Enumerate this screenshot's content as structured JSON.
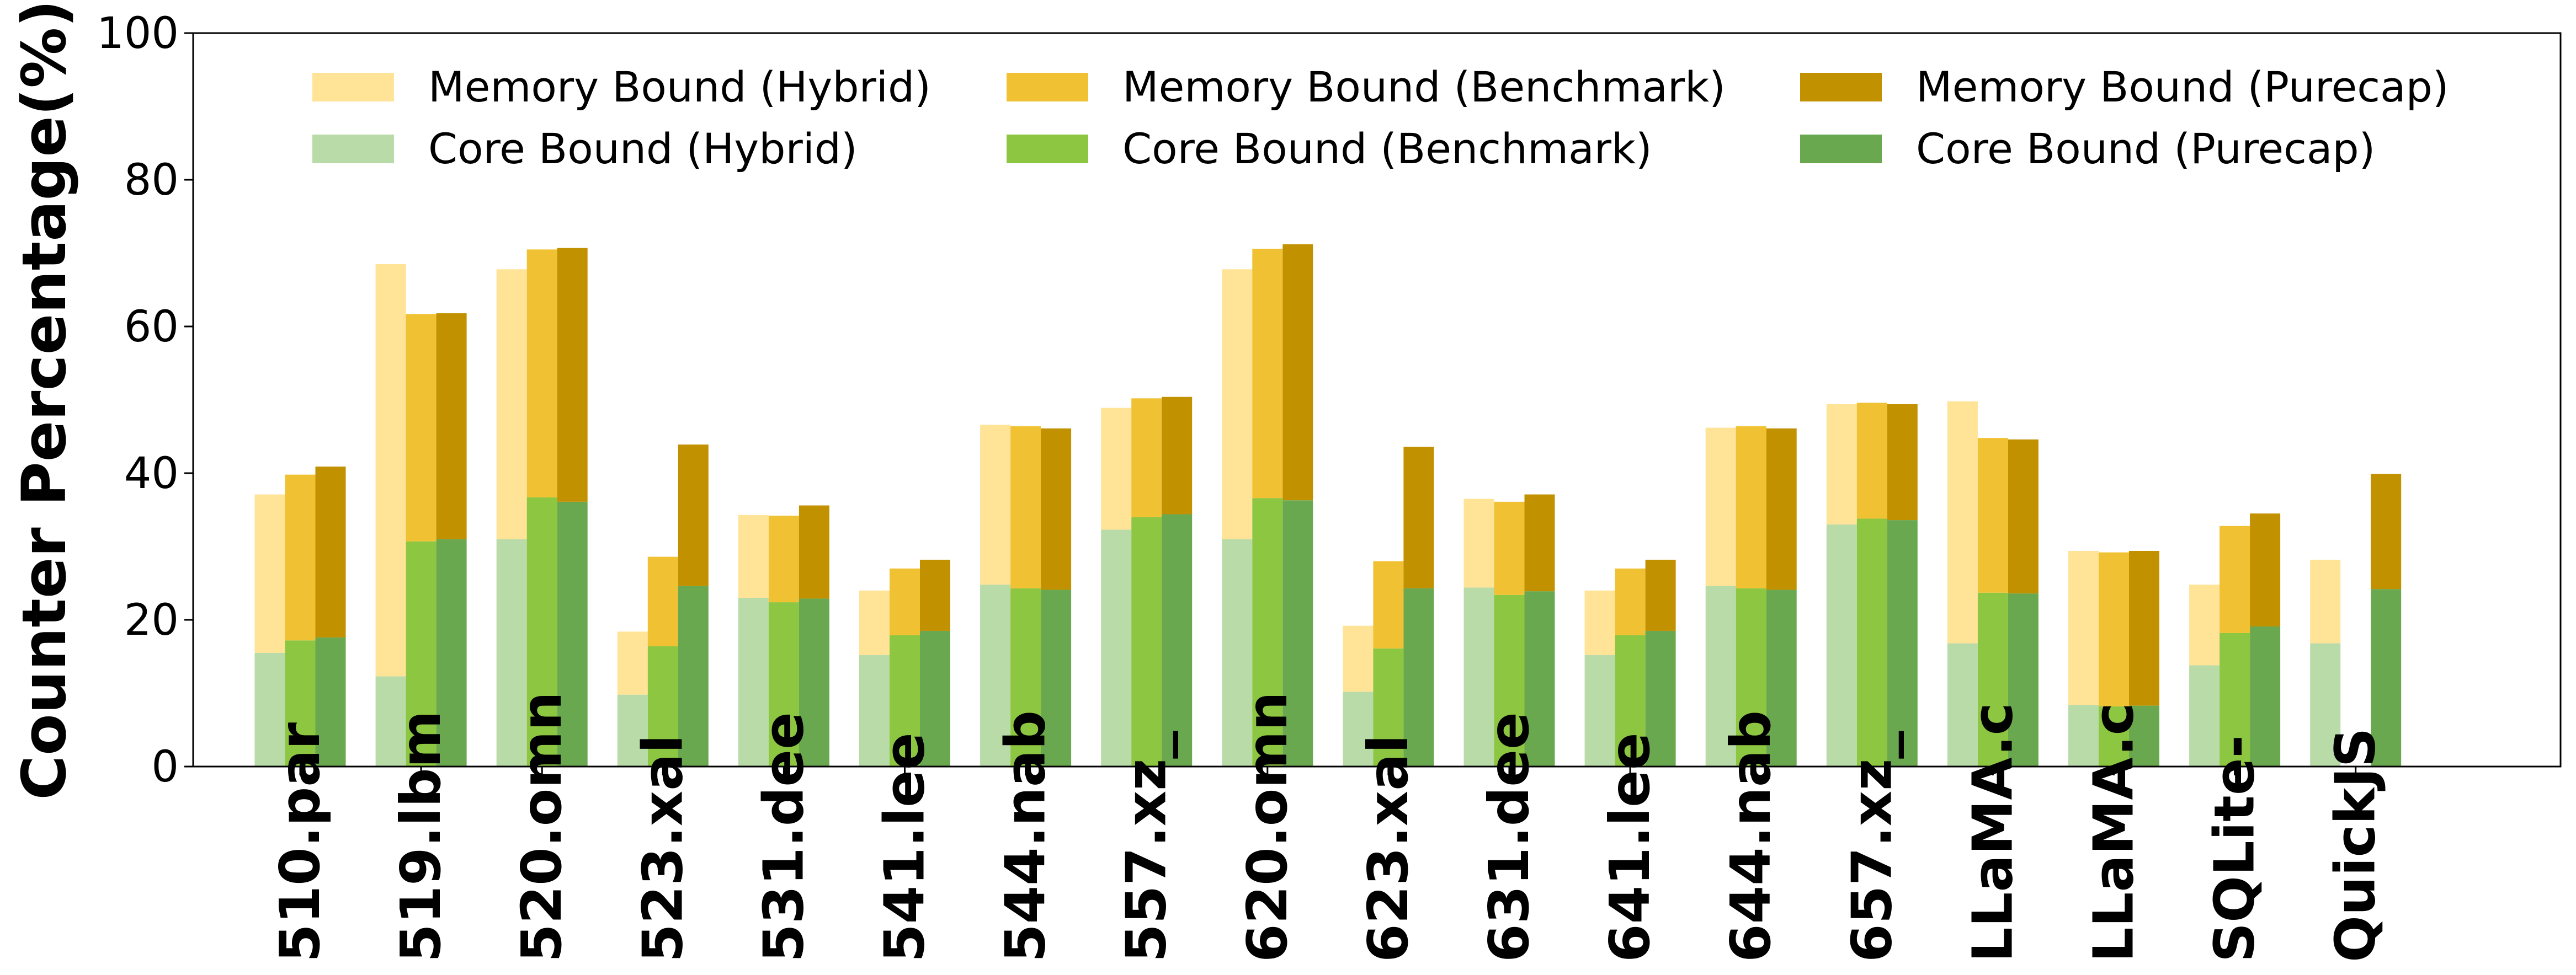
{
  "chart_data": {
    "type": "bar",
    "stacked": true,
    "grouped": true,
    "title": "",
    "xlabel": "",
    "ylabel": "Counter Percentage(%)",
    "ylim": [
      0,
      100
    ],
    "yticks": [
      0,
      20,
      40,
      60,
      80,
      100
    ],
    "grid": false,
    "legend_position": "top",
    "categories": [
      "510.par",
      "519.lbm",
      "520.omn",
      "523.xal",
      "531.dee",
      "541.lee",
      "544.nab",
      "557.xz_",
      "620.omn",
      "623.xal",
      "631.dee",
      "641.lee",
      "644.nab",
      "657.xz_",
      "LLaMA.c",
      "LLaMA.c",
      "SQLite-",
      "QuickJS"
    ],
    "series": [
      {
        "name": "Core Bound (Hybrid)",
        "group": "Hybrid",
        "component": "core",
        "color": "#b8dba8",
        "values": [
          15.5,
          12.3,
          31.0,
          9.8,
          23.0,
          15.2,
          24.8,
          32.3,
          31.0,
          10.2,
          24.4,
          15.2,
          24.6,
          33.0,
          16.8,
          8.4,
          13.8,
          16.8
        ]
      },
      {
        "name": "Memory Bound (Hybrid)",
        "group": "Hybrid",
        "component": "memory",
        "color": "#ffe396",
        "values": [
          21.6,
          56.2,
          36.8,
          8.6,
          11.3,
          8.8,
          21.8,
          16.6,
          36.8,
          9.0,
          12.1,
          8.8,
          21.6,
          16.4,
          33.0,
          21.0,
          11.0,
          11.4
        ]
      },
      {
        "name": "Core Bound (Benchmark)",
        "group": "Benchmark",
        "component": "core",
        "color": "#8dc641",
        "values": [
          17.2,
          30.7,
          36.7,
          16.4,
          22.4,
          17.9,
          24.3,
          34.0,
          36.6,
          16.1,
          23.4,
          17.9,
          24.3,
          33.8,
          23.7,
          8.2,
          18.2,
          null
        ]
      },
      {
        "name": "Memory Bound (Benchmark)",
        "group": "Benchmark",
        "component": "memory",
        "color": "#f0c233",
        "values": [
          22.6,
          31.0,
          33.8,
          12.2,
          11.8,
          9.1,
          22.1,
          16.2,
          34.0,
          11.9,
          12.7,
          9.1,
          22.1,
          15.8,
          21.1,
          21.0,
          14.6,
          null
        ]
      },
      {
        "name": "Core Bound (Purecap)",
        "group": "Purecap",
        "component": "core",
        "color": "#6aa84f",
        "values": [
          17.6,
          31.0,
          36.1,
          24.6,
          22.9,
          18.5,
          24.1,
          34.4,
          36.3,
          24.3,
          23.9,
          18.5,
          24.1,
          33.6,
          23.6,
          8.3,
          19.1,
          24.2
        ]
      },
      {
        "name": "Memory Bound (Purecap)",
        "group": "Purecap",
        "component": "memory",
        "color": "#c29100",
        "values": [
          23.3,
          30.8,
          34.6,
          19.3,
          12.7,
          9.7,
          22.0,
          16.0,
          34.9,
          19.3,
          13.2,
          9.7,
          22.0,
          15.8,
          21.0,
          21.1,
          15.4,
          15.7
        ]
      }
    ],
    "legend": [
      {
        "label": "Memory Bound (Hybrid)",
        "color": "#ffe396"
      },
      {
        "label": "Memory Bound (Benchmark)",
        "color": "#f0c233"
      },
      {
        "label": "Memory Bound (Purecap)",
        "color": "#c29100"
      },
      {
        "label": "Core Bound (Hybrid)",
        "color": "#b8dba8"
      },
      {
        "label": "Core Bound (Benchmark)",
        "color": "#8dc641"
      },
      {
        "label": "Core Bound (Purecap)",
        "color": "#6aa84f"
      }
    ]
  }
}
